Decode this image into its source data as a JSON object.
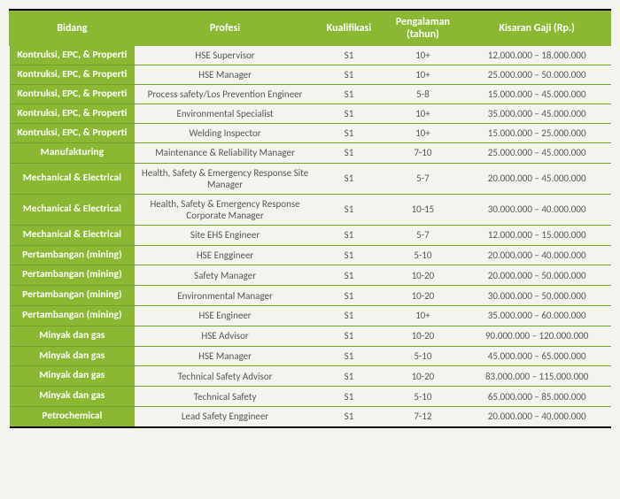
{
  "table": {
    "columns": [
      "Bidang",
      "Profesi",
      "Kualifikasi",
      "Pengalaman (tahun)",
      "Kisaran Gaji (Rp.)"
    ],
    "rows": [
      {
        "bidang": "Kontruksi, EPC, & Properti",
        "profesi": "HSE Supervisor",
        "kualifikasi": "S1",
        "pengalaman": "10+",
        "gaji": "12.000.000 – 18.000.000",
        "multiline": true
      },
      {
        "bidang": "Kontruksi, EPC, & Properti",
        "profesi": "HSE Manager",
        "kualifikasi": "S1",
        "pengalaman": "10+",
        "gaji": "25.000.000 – 50.000.000",
        "multiline": true
      },
      {
        "bidang": "Kontruksi, EPC, & Properti",
        "profesi": "Process safety/Los Prevention Engineer",
        "kualifikasi": "S1",
        "pengalaman": "5-8",
        "gaji": "15.000.000 – 45.000.000",
        "multiline": true
      },
      {
        "bidang": "Kontruksi, EPC, & Properti",
        "profesi": "Environmental Specialist",
        "kualifikasi": "S1",
        "pengalaman": "10+",
        "gaji": "35.000.000 – 45.000.000",
        "multiline": true
      },
      {
        "bidang": "Kontruksi, EPC, & Properti",
        "profesi": "Welding Inspector",
        "kualifikasi": "S1",
        "pengalaman": "10+",
        "gaji": "15.000.000 – 25.000.000",
        "multiline": true
      },
      {
        "bidang": "Manufakturing",
        "profesi": "Maintenance & Reliability Manager",
        "kualifikasi": "S1",
        "pengalaman": "7-10",
        "gaji": "25.000.000 – 45.000.000",
        "multiline": false
      },
      {
        "bidang": "Mechanical & Electrical",
        "profesi": "Health, Safety & Emergency Response Site Manager",
        "kualifikasi": "S1",
        "pengalaman": "5-7",
        "gaji": "20.000.000 – 45.000.000",
        "multiline": false
      },
      {
        "bidang": "Mechanical & Electrical",
        "profesi": "Health, Safety & Emergency Response Corporate Manager",
        "kualifikasi": "S1",
        "pengalaman": "10-15",
        "gaji": "30.000.000 – 40.000.000",
        "multiline": false
      },
      {
        "bidang": "Mechanical & Electrical",
        "profesi": "Site EHS Engineer",
        "kualifikasi": "S1",
        "pengalaman": "5-7",
        "gaji": "12.000.000 – 15.000.000",
        "multiline": false
      },
      {
        "bidang": "Pertambangan (mining)",
        "profesi": "HSE Enggineer",
        "kualifikasi": "S1",
        "pengalaman": "5-10",
        "gaji": "20.000.000 – 40.000.000",
        "multiline": false
      },
      {
        "bidang": "Pertambangan (mining)",
        "profesi": "Safety Manager",
        "kualifikasi": "S1",
        "pengalaman": "10-20",
        "gaji": "20.000.000 – 50.000.000",
        "multiline": false
      },
      {
        "bidang": "Pertambangan (mining)",
        "profesi": "Environmental Manager",
        "kualifikasi": "S1",
        "pengalaman": "10-20",
        "gaji": "30.000.000 – 50.000.000",
        "multiline": false
      },
      {
        "bidang": "Pertambangan (mining)",
        "profesi": "HSE Engineer",
        "kualifikasi": "S1",
        "pengalaman": "10+",
        "gaji": "35.000.000 – 60.000.000",
        "multiline": false
      },
      {
        "bidang": "Minyak dan gas",
        "profesi": "HSE Advisor",
        "kualifikasi": "S1",
        "pengalaman": "10-20",
        "gaji": "90.000.000 – 120.000.000",
        "multiline": false
      },
      {
        "bidang": "Minyak dan gas",
        "profesi": "HSE Manager",
        "kualifikasi": "S1",
        "pengalaman": "5-10",
        "gaji": "45.000.000 – 65.000.000",
        "multiline": false
      },
      {
        "bidang": "Minyak dan gas",
        "profesi": "Technical Safety Advisor",
        "kualifikasi": "S1",
        "pengalaman": "10-20",
        "gaji": "83.000.000 – 115.000.000",
        "multiline": false
      },
      {
        "bidang": "Minyak dan gas",
        "profesi": "Technical Safety",
        "kualifikasi": "S1",
        "pengalaman": "5-10",
        "gaji": "65.000.000 – 85.000.000",
        "multiline": false
      },
      {
        "bidang": "Petrochemical",
        "profesi": "Lead Safety Enggineer",
        "kualifikasi": "S1",
        "pengalaman": "7-12",
        "gaji": "20.000.000 – 40.000.000",
        "multiline": false
      }
    ],
    "header_bg": "#8ab833",
    "header_fg": "#ffffff",
    "row_border_color": "#74a02d",
    "page_bg": "#f4f4ef",
    "text_color": "#555555"
  }
}
